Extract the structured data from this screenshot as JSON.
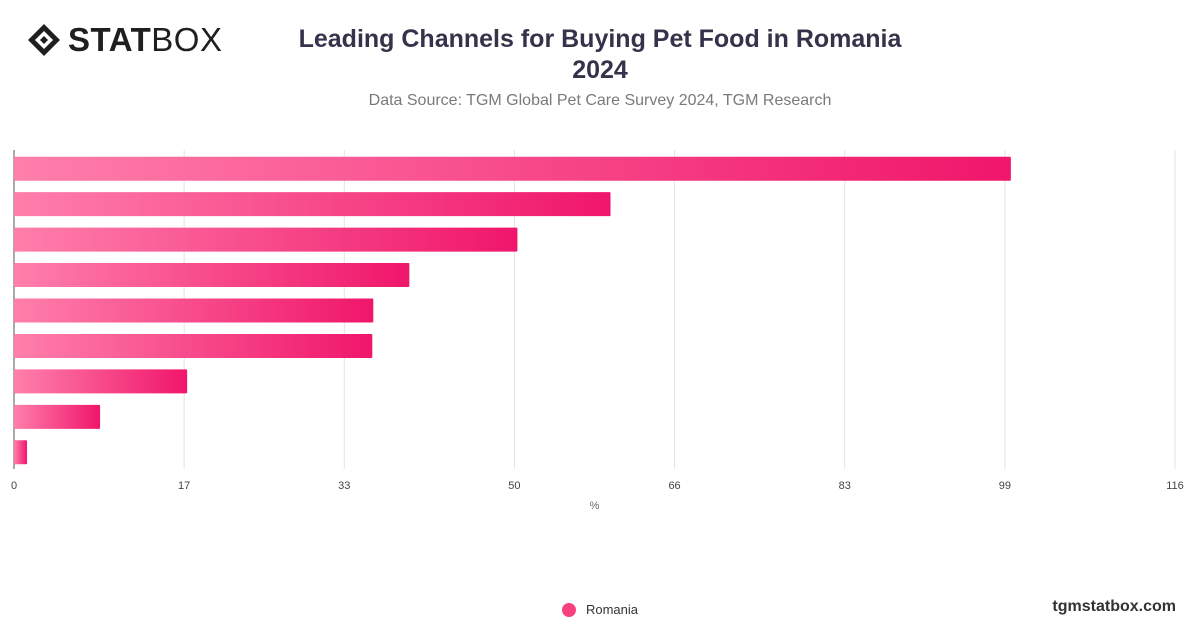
{
  "logo": {
    "bold": "STAT",
    "light": "BOX"
  },
  "title_line1": "Leading Channels for Buying Pet Food in Romania",
  "title_line2": "2024",
  "subtitle": "Data Source: TGM Global Pet Care Survey 2024, TGM Research",
  "site": "tgmstatbox.com",
  "colors": {
    "bar_start": "#ff7fab",
    "bar_end": "#f0166b",
    "grid": "#e3e3e3",
    "axis_text": "#444444"
  },
  "chart_data": {
    "type": "bar",
    "orientation": "horizontal",
    "categories": [
      "",
      "",
      "",
      "",
      "",
      "",
      "",
      "",
      ""
    ],
    "series": [
      {
        "name": "Romania",
        "values": [
          99.6,
          59.6,
          50.3,
          39.5,
          35.9,
          35.8,
          17.3,
          8.6,
          1.3
        ]
      }
    ],
    "xlabel": "%",
    "xticks": [
      0,
      17,
      33,
      50,
      66,
      83,
      99,
      116
    ],
    "xlim": [
      0,
      116
    ],
    "grid": true,
    "legend": "bottom-center"
  }
}
